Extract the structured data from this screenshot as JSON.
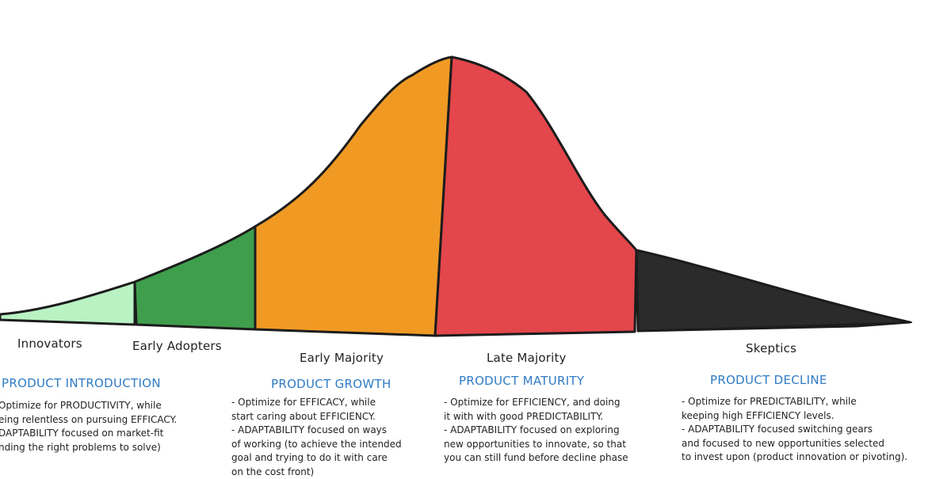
{
  "colors": {
    "innovators": "#b9f2c3",
    "early_adopters": "#3f9e4c",
    "early_majority": "#f09a24",
    "late_majority": "#e3464b",
    "skeptics": "#2b2b2b",
    "outline": "#1c1c1c",
    "phase_title": "#2f7bc4"
  },
  "segments": {
    "innovators": "Innovators",
    "early_adopters": "Early Adopters",
    "early_majority": "Early Majority",
    "late_majority": "Late Majority",
    "skeptics": "Skeptics"
  },
  "phases": {
    "introduction": {
      "title": "PRODUCT INTRODUCTION",
      "lines": [
        "Optimize for PRODUCTIVITY, while",
        "eing relentless on pursuing EFFICACY.",
        "DAPTABILITY focused on market-fit",
        "nding the right problems to solve)"
      ]
    },
    "growth": {
      "title": "PRODUCT GROWTH",
      "lines": [
        "- Optimize for EFFICACY, while",
        "  start caring about EFFICIENCY.",
        "- ADAPTABILITY focused on ways",
        "of working (to achieve the intended",
        "goal and trying to do it with care",
        "on the cost front)"
      ]
    },
    "maturity": {
      "title": "PRODUCT MATURITY",
      "lines": [
        "- Optimize for EFFICIENCY, and doing",
        "it with with good PREDICTABILITY.",
        "- ADAPTABILITY focused on exploring",
        "new opportunities to innovate, so that",
        "you can still fund before decline phase"
      ]
    },
    "decline": {
      "title": "PRODUCT DECLINE",
      "lines": [
        "- Optimize for PREDICTABILITY, while",
        "keeping high EFFICIENCY levels.",
        "- ADAPTABILITY focused switching gears",
        "and focused to new opportunities selected",
        "to invest upon (product innovation or pivoting)."
      ]
    }
  }
}
